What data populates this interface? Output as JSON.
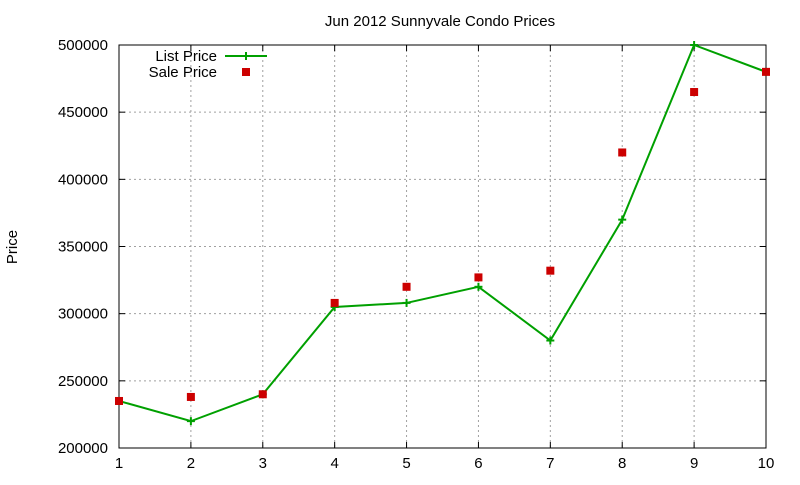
{
  "chart_data": {
    "type": "line",
    "title": "Jun 2012 Sunnyvale Condo Prices",
    "xlabel": "",
    "ylabel": "Price",
    "xlim": [
      1,
      10
    ],
    "ylim": [
      200000,
      500000
    ],
    "x_ticks": [
      "1",
      "2",
      "3",
      "4",
      "5",
      "6",
      "7",
      "8",
      "9",
      "10"
    ],
    "y_ticks": [
      "200000",
      "250000",
      "300000",
      "350000",
      "400000",
      "450000",
      "500000"
    ],
    "grid": true,
    "legend_position": "top-left",
    "x": [
      1,
      2,
      3,
      4,
      5,
      6,
      7,
      8,
      9,
      10
    ],
    "series": [
      {
        "name": "List Price",
        "style": "linespoints",
        "color": "#00a000",
        "values": [
          235000,
          220000,
          240000,
          305000,
          308000,
          320000,
          280000,
          370000,
          500000,
          480000
        ]
      },
      {
        "name": "Sale Price",
        "style": "points",
        "color": "#cc0000",
        "values": [
          235000,
          238000,
          240000,
          308000,
          320000,
          327000,
          332000,
          420000,
          465000,
          480000
        ]
      }
    ]
  }
}
